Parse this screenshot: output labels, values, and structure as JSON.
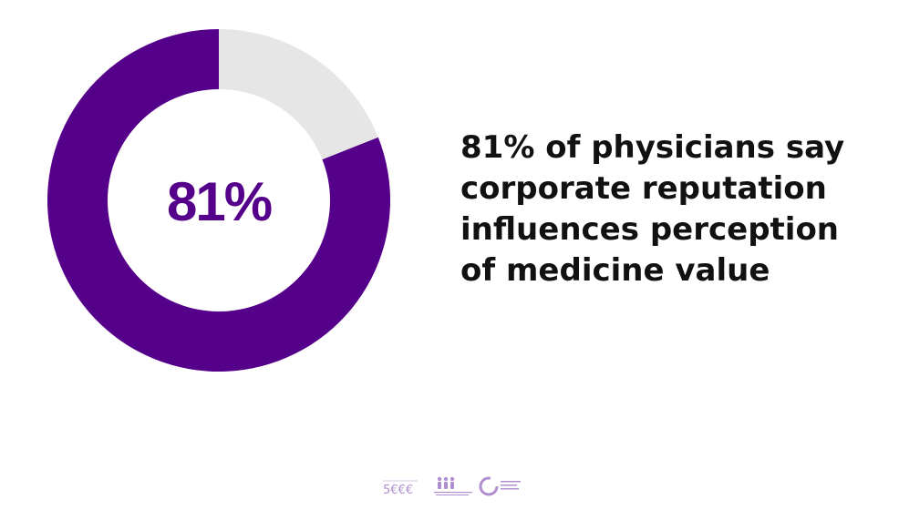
{
  "chart_data": {
    "type": "pie",
    "variant": "donut",
    "center_label": "81%",
    "slices": [
      {
        "label": "",
        "value": 81,
        "color": "#55008a"
      },
      {
        "label": "",
        "value": 19,
        "color": "#e6e6e6"
      }
    ],
    "start": "top",
    "direction": "counter-clockwise"
  },
  "headline": {
    "text": "81% of physicians say\ncorporate reputation\ninfluences perception\nof medicine value"
  },
  "colors": {
    "accent": "#55008a",
    "remainder": "#e6e6e6",
    "text": "#111111",
    "logo": "#b08fd0"
  },
  "footer": {
    "logos": [
      "partner-logo-1",
      "partner-logo-2",
      "partner-logo-3"
    ]
  }
}
